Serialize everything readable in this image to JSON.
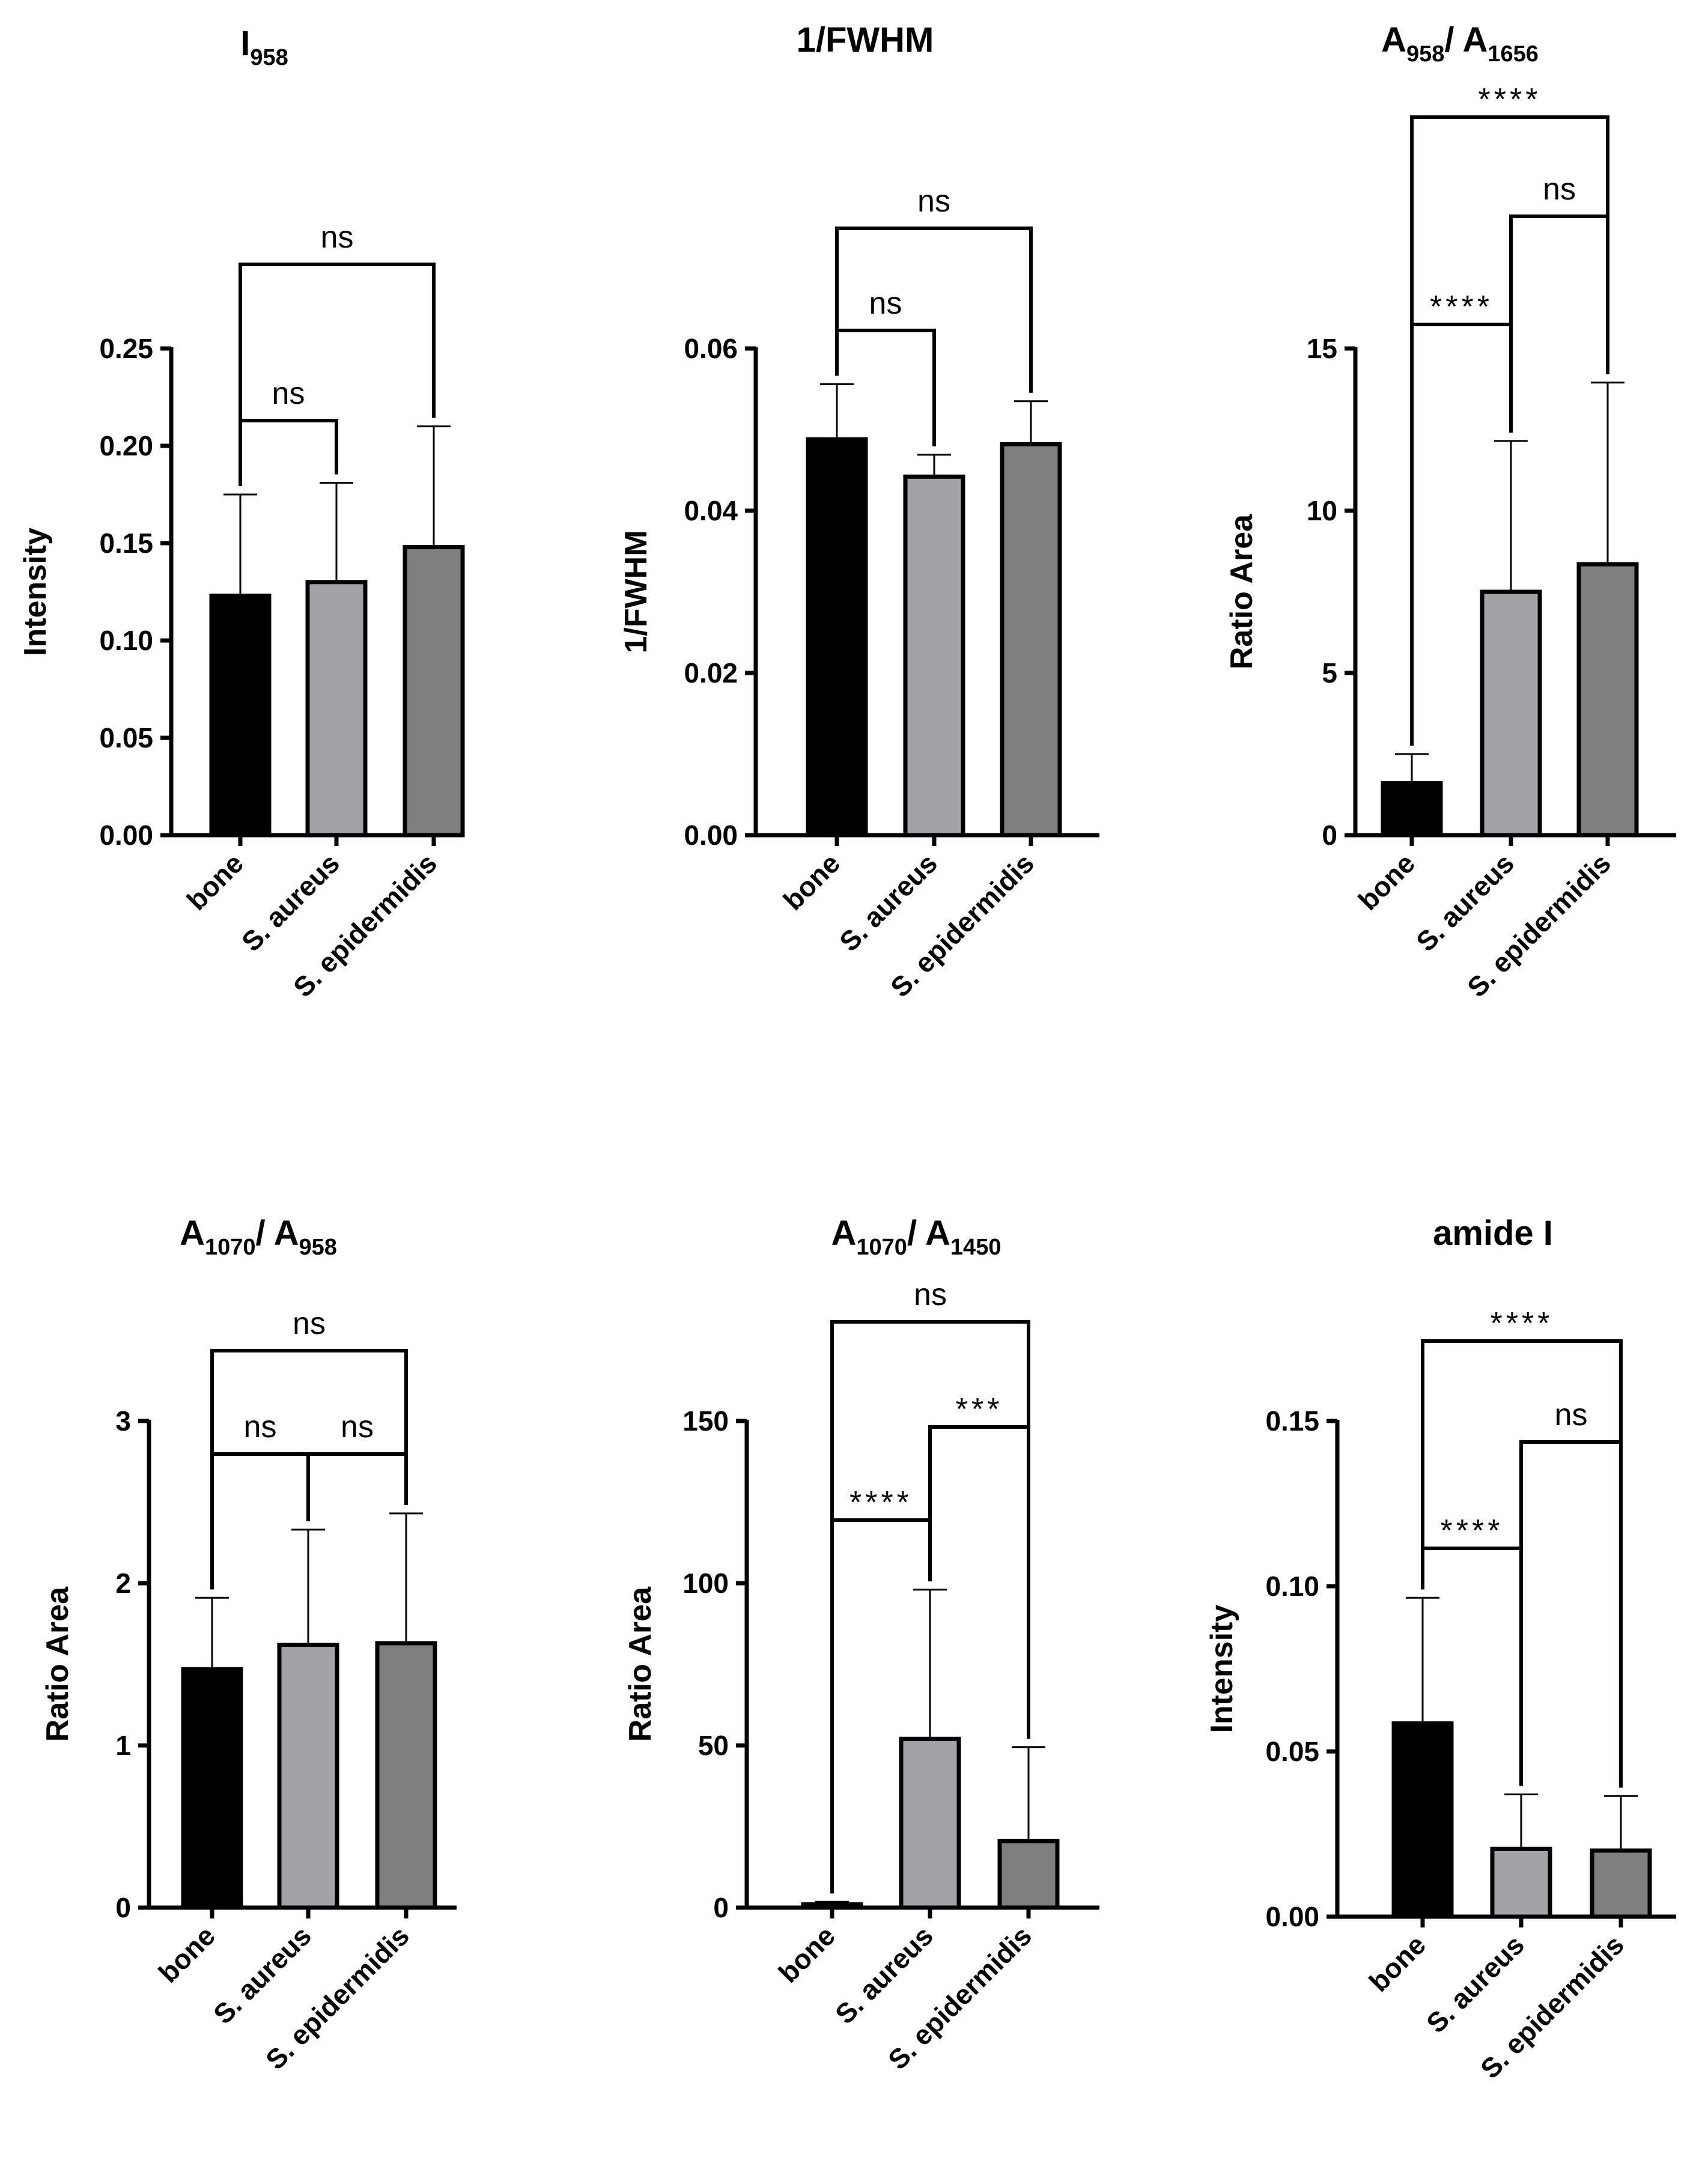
{
  "chart_data": [
    {
      "type": "bar",
      "title": "I",
      "title_sub": "958",
      "ylabel": "Intensity",
      "categories": [
        "bone",
        "S. aureus",
        "S. epidermidis"
      ],
      "values": [
        0.123,
        0.13,
        0.148
      ],
      "errors": [
        0.052,
        0.051,
        0.062
      ],
      "ylim": [
        0,
        0.25
      ],
      "yticks": [
        "0.00",
        "0.05",
        "0.10",
        "0.15",
        "0.20",
        "0.25"
      ],
      "colors": [
        "#000000",
        "#a3a3a7",
        "#7e7e7e"
      ],
      "comparisons": [
        {
          "a": 0,
          "b": 1,
          "label": "ns"
        },
        {
          "a": 0,
          "b": 2,
          "label": "ns"
        }
      ]
    },
    {
      "type": "bar",
      "title": "1/FWHM",
      "ylabel": "1/FWHM",
      "categories": [
        "bone",
        "S. aureus",
        "S. epidermidis"
      ],
      "values": [
        0.0488,
        0.0442,
        0.0482
      ],
      "errors": [
        0.0068,
        0.0027,
        0.0053
      ],
      "ylim": [
        0,
        0.06
      ],
      "yticks": [
        "0.00",
        "0.02",
        "0.04",
        "0.06"
      ],
      "colors": [
        "#000000",
        "#a3a3a7",
        "#7e7e7e"
      ],
      "comparisons": [
        {
          "a": 0,
          "b": 1,
          "label": "ns"
        },
        {
          "a": 0,
          "b": 2,
          "label": "ns"
        }
      ]
    },
    {
      "type": "bar",
      "title": "A",
      "title_sub": "958",
      "title_mid": "/ A",
      "title_sub2": "1656",
      "ylabel": "Ratio Area",
      "categories": [
        "bone",
        "S. aureus",
        "S. epidermidis"
      ],
      "values": [
        1.6,
        7.5,
        8.35
      ],
      "errors": [
        0.9,
        4.65,
        5.6
      ],
      "ylim": [
        0,
        15
      ],
      "yticks": [
        "0",
        "5",
        "10",
        "15"
      ],
      "colors": [
        "#000000",
        "#a3a3a7",
        "#7e7e7e"
      ],
      "comparisons": [
        {
          "a": 0,
          "b": 1,
          "label": "****"
        },
        {
          "a": 1,
          "b": 2,
          "label": "ns"
        },
        {
          "a": 0,
          "b": 2,
          "label": "****"
        }
      ]
    },
    {
      "type": "bar",
      "title": "A",
      "title_sub": "1070",
      "title_mid": "/ A",
      "title_sub2": "958",
      "ylabel": "Ratio Area",
      "categories": [
        "bone",
        "S. aureus",
        "S. epidermidis"
      ],
      "values": [
        1.47,
        1.62,
        1.63
      ],
      "errors": [
        0.44,
        0.71,
        0.8
      ],
      "ylim": [
        0,
        3
      ],
      "yticks": [
        "0",
        "1",
        "2",
        "3"
      ],
      "colors": [
        "#000000",
        "#a3a3a7",
        "#7e7e7e"
      ],
      "comparisons": [
        {
          "a": 0,
          "b": 1,
          "label": "ns"
        },
        {
          "a": 1,
          "b": 2,
          "label": "ns"
        },
        {
          "a": 0,
          "b": 2,
          "label": "ns"
        }
      ]
    },
    {
      "type": "bar",
      "title": "A",
      "title_sub": "1070",
      "title_mid": "/ A",
      "title_sub2": "1450",
      "ylabel": "Ratio Area",
      "categories": [
        "bone",
        "S. aureus",
        "S. epidermidis"
      ],
      "values": [
        1,
        52,
        20.5
      ],
      "errors": [
        0.8,
        46,
        29
      ],
      "ylim": [
        0,
        150
      ],
      "yticks": [
        "0",
        "50",
        "100",
        "150"
      ],
      "colors": [
        "#000000",
        "#a3a3a7",
        "#7e7e7e"
      ],
      "comparisons": [
        {
          "a": 0,
          "b": 1,
          "label": "****"
        },
        {
          "a": 1,
          "b": 2,
          "label": "***"
        },
        {
          "a": 0,
          "b": 2,
          "label": "ns"
        }
      ]
    },
    {
      "type": "bar",
      "title": "amide I",
      "ylabel": "Intensity",
      "categories": [
        "bone",
        "S. aureus",
        "S. epidermidis"
      ],
      "values": [
        0.0585,
        0.0205,
        0.02
      ],
      "errors": [
        0.038,
        0.0165,
        0.0165
      ],
      "ylim": [
        0,
        0.15
      ],
      "yticks": [
        "0.00",
        "0.05",
        "0.10",
        "0.15"
      ],
      "colors": [
        "#000000",
        "#a3a3a7",
        "#7e7e7e"
      ],
      "comparisons": [
        {
          "a": 0,
          "b": 1,
          "label": "****"
        },
        {
          "a": 1,
          "b": 2,
          "label": "ns"
        },
        {
          "a": 0,
          "b": 2,
          "label": "****"
        }
      ]
    }
  ]
}
